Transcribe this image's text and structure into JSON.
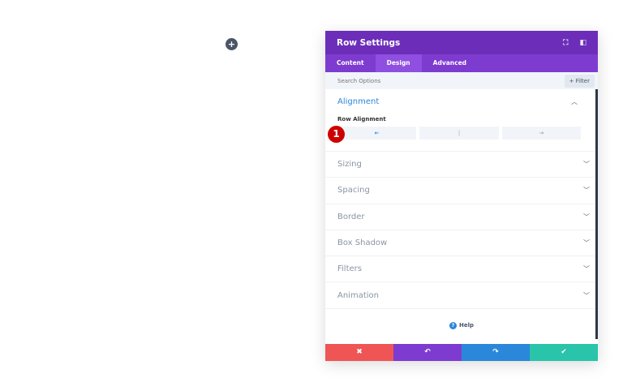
{
  "add_button": "+",
  "panel": {
    "title": "Row Settings",
    "tabs": [
      {
        "label": "Content"
      },
      {
        "label": "Design"
      },
      {
        "label": "Advanced"
      }
    ],
    "search_placeholder": "Search Options",
    "filter_label": "+ Filter",
    "alignment": {
      "title": "Alignment",
      "row_alignment_label": "Row Alignment",
      "options": [
        "⇤",
        "|",
        "⇥"
      ],
      "selected": "left"
    },
    "badge": "1",
    "sections": [
      "Sizing",
      "Spacing",
      "Border",
      "Box Shadow",
      "Filters",
      "Animation"
    ],
    "help": "Help",
    "footer": {
      "cancel": "✖",
      "undo": "↶",
      "redo": "↷",
      "save": "✔"
    },
    "colors": {
      "header": "#6c2eb9",
      "tabs": "#7e3bd0",
      "cancel": "#ef5555",
      "undo": "#7e3bd0",
      "redo": "#2b87da",
      "save": "#29c4a9"
    }
  }
}
